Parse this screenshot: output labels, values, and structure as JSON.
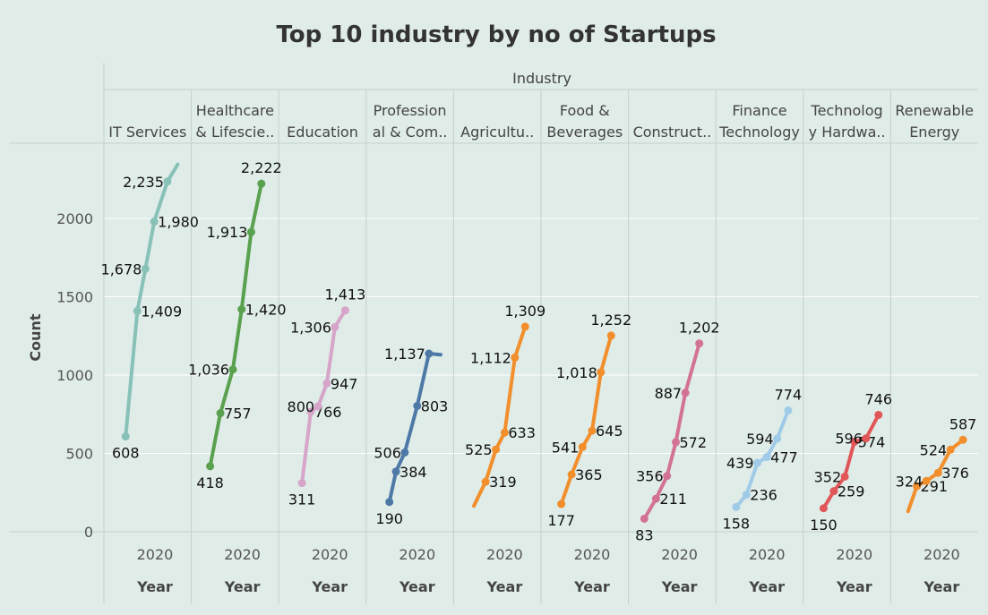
{
  "chart_data": {
    "type": "line",
    "title": "Top 10 industry by no of Startups",
    "column_header": "Industry",
    "ylabel": "Count",
    "xlabel": "Year",
    "x_tick": "2020",
    "yticks": [
      0,
      500,
      1000,
      1500,
      2000
    ],
    "ylim": [
      0,
      2480
    ],
    "x_domain": [
      2016.7,
      2022.3
    ],
    "x_tick_value": 2020,
    "panels": [
      {
        "label_lines": [
          "IT Services"
        ],
        "color": "#87c1b8",
        "points": [
          {
            "x": 2018.0,
            "y": 608,
            "label": "608"
          },
          {
            "x": 2018.8,
            "y": 1409,
            "label": "1,409"
          },
          {
            "x": 2019.35,
            "y": 1678,
            "label": "1,678"
          },
          {
            "x": 2019.95,
            "y": 1980,
            "label": "1,980"
          },
          {
            "x": 2020.85,
            "y": 2235,
            "label": "2,235"
          },
          {
            "x": 2021.55,
            "y": 2345,
            "label": ""
          }
        ]
      },
      {
        "label_lines": [
          "Healthcare",
          "& Lifescie.."
        ],
        "color": "#59a14f",
        "points": [
          {
            "x": 2017.8,
            "y": 418,
            "label": "418"
          },
          {
            "x": 2018.5,
            "y": 757,
            "label": "757"
          },
          {
            "x": 2019.35,
            "y": 1036,
            "label": "1,036"
          },
          {
            "x": 2019.95,
            "y": 1420,
            "label": "1,420"
          },
          {
            "x": 2020.6,
            "y": 1913,
            "label": "1,913"
          },
          {
            "x": 2021.3,
            "y": 2222,
            "label": "2,222"
          }
        ]
      },
      {
        "label_lines": [
          "Education"
        ],
        "color": "#d6a5c9",
        "points": [
          {
            "x": 2018.1,
            "y": 311,
            "label": "311"
          },
          {
            "x": 2018.7,
            "y": 766,
            "label": "766"
          },
          {
            "x": 2019.2,
            "y": 800,
            "label": "800"
          },
          {
            "x": 2019.8,
            "y": 947,
            "label": "947"
          },
          {
            "x": 2020.35,
            "y": 1306,
            "label": "1,306"
          },
          {
            "x": 2021.05,
            "y": 1413,
            "label": "1,413"
          }
        ]
      },
      {
        "label_lines": [
          "Profession",
          "al & Com.."
        ],
        "color": "#4e79a7",
        "points": [
          {
            "x": 2018.1,
            "y": 190,
            "label": "190"
          },
          {
            "x": 2018.55,
            "y": 384,
            "label": "384"
          },
          {
            "x": 2019.15,
            "y": 506,
            "label": "506"
          },
          {
            "x": 2020.0,
            "y": 803,
            "label": "803"
          },
          {
            "x": 2020.8,
            "y": 1137,
            "label": "1,137"
          },
          {
            "x": 2021.6,
            "y": 1130,
            "label": ""
          }
        ]
      },
      {
        "label_lines": [
          "Agricultu.."
        ],
        "color": "#f28e2b",
        "points": [
          {
            "x": 2017.9,
            "y": 165,
            "label": ""
          },
          {
            "x": 2018.7,
            "y": 319,
            "label": "319"
          },
          {
            "x": 2019.4,
            "y": 525,
            "label": "525"
          },
          {
            "x": 2020.0,
            "y": 633,
            "label": "633"
          },
          {
            "x": 2020.7,
            "y": 1112,
            "label": "1,112"
          },
          {
            "x": 2021.4,
            "y": 1309,
            "label": "1,309"
          }
        ]
      },
      {
        "label_lines": [
          "Food &",
          "Beverages"
        ],
        "color": "#f28e2b",
        "points": [
          {
            "x": 2017.9,
            "y": 177,
            "label": "177"
          },
          {
            "x": 2018.6,
            "y": 365,
            "label": "365"
          },
          {
            "x": 2019.35,
            "y": 541,
            "label": "541"
          },
          {
            "x": 2020.0,
            "y": 645,
            "label": "645"
          },
          {
            "x": 2020.6,
            "y": 1018,
            "label": "1,018"
          },
          {
            "x": 2021.3,
            "y": 1252,
            "label": "1,252"
          }
        ]
      },
      {
        "label_lines": [
          "Construct.."
        ],
        "color": "#d37295",
        "points": [
          {
            "x": 2017.6,
            "y": 83,
            "label": "83"
          },
          {
            "x": 2018.4,
            "y": 211,
            "label": "211"
          },
          {
            "x": 2019.15,
            "y": 356,
            "label": "356"
          },
          {
            "x": 2019.75,
            "y": 572,
            "label": "572"
          },
          {
            "x": 2020.4,
            "y": 887,
            "label": "887"
          },
          {
            "x": 2021.35,
            "y": 1202,
            "label": "1,202"
          }
        ]
      },
      {
        "label_lines": [
          "Finance",
          "Technology"
        ],
        "color": "#a0cbe8",
        "points": [
          {
            "x": 2017.9,
            "y": 158,
            "label": "158"
          },
          {
            "x": 2018.6,
            "y": 236,
            "label": "236"
          },
          {
            "x": 2019.35,
            "y": 439,
            "label": "439"
          },
          {
            "x": 2020.0,
            "y": 477,
            "label": "477"
          },
          {
            "x": 2020.7,
            "y": 594,
            "label": "594"
          },
          {
            "x": 2021.45,
            "y": 774,
            "label": "774"
          }
        ]
      },
      {
        "label_lines": [
          "Technolog",
          "y Hardwa.."
        ],
        "color": "#e15759",
        "points": [
          {
            "x": 2017.9,
            "y": 150,
            "label": "150"
          },
          {
            "x": 2018.6,
            "y": 259,
            "label": "259"
          },
          {
            "x": 2019.35,
            "y": 352,
            "label": "352"
          },
          {
            "x": 2020.0,
            "y": 574,
            "label": "574"
          },
          {
            "x": 2020.8,
            "y": 596,
            "label": "596"
          },
          {
            "x": 2021.65,
            "y": 746,
            "label": "746"
          }
        ]
      },
      {
        "label_lines": [
          "Renewable",
          "Energy"
        ],
        "color": "#f28e2b",
        "points": [
          {
            "x": 2017.7,
            "y": 130,
            "label": ""
          },
          {
            "x": 2018.3,
            "y": 291,
            "label": "291"
          },
          {
            "x": 2018.95,
            "y": 324,
            "label": "324"
          },
          {
            "x": 2019.75,
            "y": 376,
            "label": "376"
          },
          {
            "x": 2020.6,
            "y": 524,
            "label": "524"
          },
          {
            "x": 2021.45,
            "y": 587,
            "label": "587"
          }
        ]
      }
    ]
  }
}
